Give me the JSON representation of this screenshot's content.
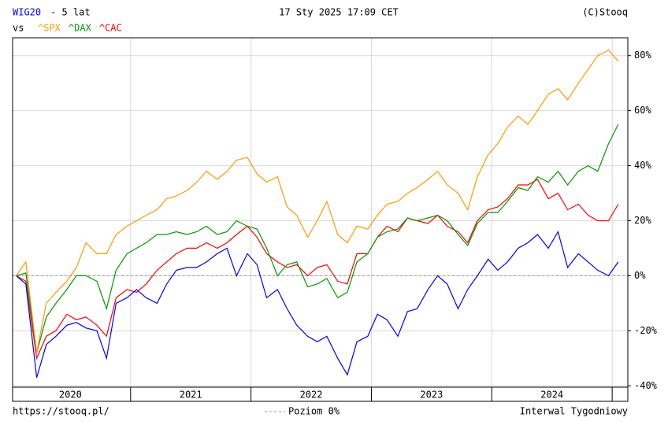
{
  "chart_data": {
    "type": "line",
    "title": "- 5 lat",
    "timestamp": "17 Sty 2025 17:09 CET",
    "source": "(C)Stooq",
    "vs_label": "vs",
    "footer_left": "https://stooq.pl/",
    "zero_line_label": "Poziom 0%",
    "footer_right": "Interwal Tygodniowy",
    "grid": true,
    "zero_line": true,
    "xlim": [
      2020.02,
      2025.13
    ],
    "xgrid": [
      2021,
      2022,
      2023,
      2024,
      2025
    ],
    "xticks": [
      {
        "value": 2020.5,
        "label": "2020"
      },
      {
        "value": 2021.5,
        "label": "2021"
      },
      {
        "value": 2022.5,
        "label": "2022"
      },
      {
        "value": 2023.5,
        "label": "2023"
      },
      {
        "value": 2024.5,
        "label": "2024"
      }
    ],
    "ylim": [
      -40.5,
      86.5
    ],
    "yticks": [
      {
        "value": 80,
        "label": "80%"
      },
      {
        "value": 60,
        "label": "60%"
      },
      {
        "value": 40,
        "label": "40%"
      },
      {
        "value": 20,
        "label": "20%"
      },
      {
        "value": 0,
        "label": "0%"
      },
      {
        "value": -20,
        "label": "-20%"
      },
      {
        "value": -40,
        "label": "-40%"
      }
    ],
    "x": [
      2020.05,
      2020.13,
      2020.22,
      2020.3,
      2020.38,
      2020.47,
      2020.55,
      2020.63,
      2020.72,
      2020.8,
      2020.88,
      2020.97,
      2021.05,
      2021.13,
      2021.22,
      2021.3,
      2021.38,
      2021.47,
      2021.55,
      2021.63,
      2021.72,
      2021.8,
      2021.88,
      2021.97,
      2022.05,
      2022.13,
      2022.22,
      2022.3,
      2022.38,
      2022.47,
      2022.55,
      2022.63,
      2022.72,
      2022.8,
      2022.88,
      2022.97,
      2023.05,
      2023.13,
      2023.22,
      2023.3,
      2023.38,
      2023.47,
      2023.55,
      2023.63,
      2023.72,
      2023.8,
      2023.88,
      2023.97,
      2024.05,
      2024.13,
      2024.22,
      2024.3,
      2024.38,
      2024.47,
      2024.55,
      2024.63,
      2024.72,
      2024.8,
      2024.88,
      2024.97,
      2025.05
    ],
    "series": [
      {
        "name": "WIG20",
        "color": "#0000ff",
        "values": [
          0,
          -3,
          -37,
          -25,
          -22,
          -18,
          -17,
          -19,
          -20,
          -30,
          -10,
          -8,
          -5,
          -8,
          -10,
          -3,
          2,
          3,
          3,
          5,
          8,
          10,
          0,
          8,
          4,
          -8,
          -5,
          -12,
          -18,
          -22,
          -24,
          -22,
          -30,
          -36,
          -24,
          -22,
          -14,
          -16,
          -22,
          -13,
          -12,
          -5,
          0,
          -3,
          -12,
          -5,
          0,
          6,
          2,
          5,
          10,
          12,
          15,
          10,
          16,
          3,
          8,
          5,
          2,
          0,
          5
        ]
      },
      {
        "name": "^SPX",
        "color": "#ff9900",
        "values": [
          0,
          5,
          -28,
          -10,
          -6,
          -2,
          3,
          12,
          8,
          8,
          15,
          18,
          20,
          22,
          24,
          28,
          29,
          31,
          34,
          38,
          35,
          38,
          42,
          43,
          37,
          34,
          36,
          25,
          22,
          14,
          20,
          27,
          15,
          12,
          18,
          17,
          22,
          26,
          27,
          30,
          32,
          35,
          38,
          33,
          30,
          24,
          36,
          44,
          48,
          54,
          58,
          55,
          60,
          66,
          68,
          64,
          70,
          75,
          80,
          82,
          78
        ]
      },
      {
        "name": "^DAX",
        "color": "#009900",
        "values": [
          0,
          1,
          -28,
          -15,
          -10,
          -5,
          0,
          0,
          -2,
          -12,
          2,
          8,
          10,
          12,
          15,
          15,
          16,
          15,
          16,
          18,
          15,
          16,
          20,
          18,
          17,
          10,
          0,
          4,
          5,
          -4,
          -3,
          -1,
          -8,
          -6,
          5,
          8,
          14,
          16,
          17,
          21,
          20,
          21,
          22,
          20,
          15,
          11,
          19,
          23,
          23,
          27,
          32,
          31,
          36,
          34,
          38,
          33,
          38,
          40,
          38,
          48,
          55
        ]
      },
      {
        "name": "^CAC",
        "color": "#ff0000",
        "values": [
          0,
          -2,
          -30,
          -22,
          -20,
          -14,
          -16,
          -15,
          -18,
          -22,
          -8,
          -5,
          -6,
          -3,
          2,
          5,
          8,
          10,
          10,
          12,
          10,
          12,
          15,
          18,
          14,
          8,
          5,
          3,
          4,
          0,
          3,
          4,
          -2,
          -3,
          8,
          8,
          14,
          18,
          16,
          21,
          20,
          19,
          22,
          18,
          16,
          12,
          20,
          24,
          25,
          28,
          33,
          33,
          35,
          28,
          30,
          24,
          26,
          22,
          20,
          20,
          26
        ]
      }
    ]
  }
}
